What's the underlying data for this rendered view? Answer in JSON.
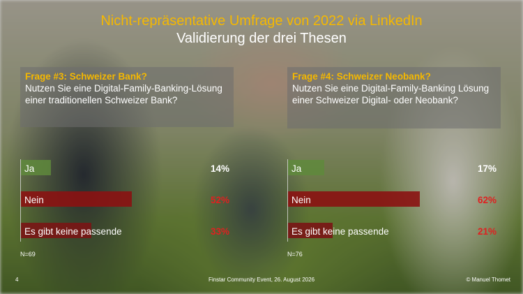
{
  "title_line1": "Nicht-repräsentative Umfrage von 2022 via LinkedIn",
  "title_line2": "Validierung der drei Thesen",
  "colors": {
    "accent": "#f5b800",
    "ja": "#5f8a3c",
    "nein": "#8b1212",
    "keine": "#7a1515",
    "red_value": "#e02020"
  },
  "questions": [
    {
      "heading": "Frage #3: Schweizer Bank?",
      "text": "Nutzen Sie eine Digital-Family-Banking-Lösung einer traditionellen Schweizer Bank?",
      "answers": [
        {
          "label": "Ja",
          "value": "14%",
          "fraction": 0.14
        },
        {
          "label": "Nein",
          "value": "52%",
          "fraction": 0.52
        },
        {
          "label": "Es gibt keine passende",
          "value": "33%",
          "fraction": 0.33
        }
      ],
      "n": "N=69"
    },
    {
      "heading": "Frage #4: Schweizer Neobank?",
      "text": "Nutzen Sie eine Digital-Family-Banking Lösung einer Schweizer Digital- oder Neobank?",
      "answers": [
        {
          "label": "Ja",
          "value": "17%",
          "fraction": 0.17
        },
        {
          "label": "Nein",
          "value": "62%",
          "fraction": 0.62
        },
        {
          "label": "Es gibt keine passende",
          "value": "21%",
          "fraction": 0.21
        }
      ],
      "n": "N=76"
    }
  ],
  "footer": {
    "page": "4",
    "event": "Finstar Community Event, 26. August 2026",
    "copyright": "© Manuel Thomet"
  }
}
